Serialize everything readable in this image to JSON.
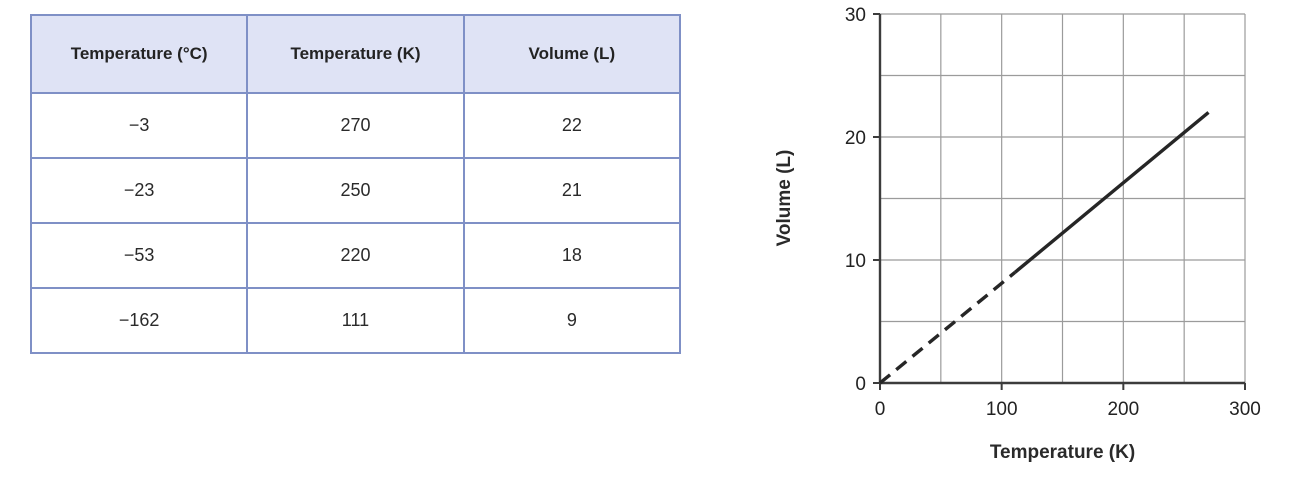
{
  "table": {
    "headers": [
      "Temperature (°C)",
      "Temperature (K)",
      "Volume (L)"
    ],
    "rows": [
      [
        "−3",
        "270",
        "22"
      ],
      [
        "−23",
        "250",
        "21"
      ],
      [
        "−53",
        "220",
        "18"
      ],
      [
        "−162",
        "111",
        "9"
      ]
    ],
    "header_bg": "#dfe3f5",
    "border_color": "#7f90c6"
  },
  "chart_data": {
    "type": "line",
    "title": "",
    "xlabel": "Temperature (K)",
    "ylabel": "Volume (L)",
    "xlim": [
      0,
      300
    ],
    "ylim": [
      0,
      30
    ],
    "x_ticks": [
      0,
      100,
      200,
      300
    ],
    "y_ticks": [
      0,
      10,
      20,
      30
    ],
    "x_grid_interval": 50,
    "y_grid_interval": 5,
    "grid": true,
    "legend": "none",
    "data_points": [
      [
        111,
        9
      ],
      [
        220,
        18
      ],
      [
        250,
        21
      ],
      [
        270,
        22
      ]
    ],
    "series": [
      {
        "name": "extrapolation",
        "style": "dashed",
        "points": [
          [
            0,
            0
          ],
          [
            111,
            9
          ]
        ]
      },
      {
        "name": "measured",
        "style": "solid",
        "points": [
          [
            111,
            9
          ],
          [
            270,
            22
          ]
        ]
      }
    ],
    "line_color": "#262626",
    "grid_color": "#9b9b9b",
    "axis_color": "#3c3c3c"
  }
}
